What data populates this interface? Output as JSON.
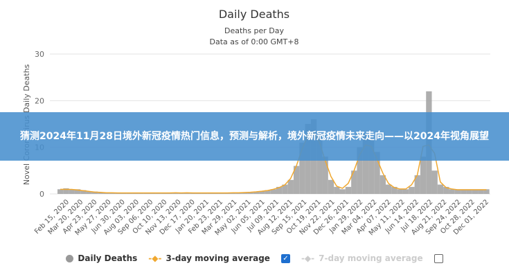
{
  "chart_data": {
    "type": "bar",
    "title": "Daily Deaths",
    "subtitle": [
      "Deaths per Day",
      "Data as of 0:00 GMT+8"
    ],
    "ylabel": "Novel Coronavirus Daily Deaths",
    "ylim": [
      0,
      30
    ],
    "yticks": [
      "0",
      "10",
      "20",
      "30"
    ],
    "grid": true,
    "legend_position": "bottom",
    "xticks": [
      "Feb 15, 2020",
      "Mar 20, 2020",
      "Apr 23, 2020",
      "May 27, 2020",
      "Jun 30, 2020",
      "Aug 03, 2020",
      "Sep 06, 2020",
      "Oct 10, 2020",
      "Nov 13, 2020",
      "Dec 17, 2020",
      "Jan 20, 2021",
      "Feb 23, 2021",
      "Mar 29, 2021",
      "May 02, 2021",
      "Jun 05, 2021",
      "Jul 09, 2021",
      "Aug 12, 2021",
      "Sep 15, 2021",
      "Oct 19, 2021",
      "Nov 22, 2021",
      "Dec 26, 2021",
      "Jan 29, 2022",
      "Mar 04, 2022",
      "Apr 07, 2022",
      "May 11, 2022",
      "Jun 14, 2022",
      "Jul 18, 2022",
      "Aug 21, 2022",
      "Sep 24, 2022",
      "Oct 28, 2022",
      "Dec 01, 2022"
    ],
    "x": [
      "2020-02-15",
      "2020-02-29",
      "2020-03-14",
      "2020-03-28",
      "2020-04-11",
      "2020-04-25",
      "2020-05-09",
      "2020-05-23",
      "2020-06-06",
      "2020-06-20",
      "2020-07-04",
      "2020-07-18",
      "2020-08-01",
      "2020-08-15",
      "2020-08-29",
      "2020-09-12",
      "2020-09-26",
      "2020-10-10",
      "2020-10-24",
      "2020-11-07",
      "2020-11-21",
      "2020-12-05",
      "2020-12-19",
      "2021-01-02",
      "2021-01-16",
      "2021-01-30",
      "2021-02-13",
      "2021-02-27",
      "2021-03-13",
      "2021-03-27",
      "2021-04-10",
      "2021-04-24",
      "2021-05-08",
      "2021-05-22",
      "2021-06-05",
      "2021-06-19",
      "2021-07-03",
      "2021-07-17",
      "2021-07-31",
      "2021-08-14",
      "2021-08-28",
      "2021-09-11",
      "2021-09-25",
      "2021-10-09",
      "2021-10-23",
      "2021-11-06",
      "2021-11-20",
      "2021-12-04",
      "2021-12-18",
      "2022-01-01",
      "2022-01-15",
      "2022-01-29",
      "2022-02-12",
      "2022-02-26",
      "2022-03-12",
      "2022-03-26",
      "2022-04-09",
      "2022-04-23",
      "2022-05-07",
      "2022-05-21",
      "2022-06-04",
      "2022-06-18",
      "2022-07-02",
      "2022-07-16",
      "2022-07-30",
      "2022-08-13",
      "2022-08-27",
      "2022-09-10",
      "2022-09-24",
      "2022-10-08",
      "2022-10-22",
      "2022-11-05",
      "2022-11-19",
      "2022-12-03",
      "2022-12-17"
    ],
    "series": [
      {
        "name": "Daily Deaths",
        "color": "#9e9e9e",
        "values": [
          1,
          1.2,
          1,
          1,
          0.8,
          0.5,
          0.5,
          0.3,
          0.3,
          0.2,
          0.3,
          0.2,
          0.2,
          0.3,
          0.2,
          0.2,
          0.3,
          0.2,
          0.2,
          0.3,
          0.2,
          0.3,
          0.2,
          0.3,
          0.2,
          0.2,
          0.3,
          0.2,
          0.2,
          0.3,
          0.2,
          0.3,
          0.3,
          0.4,
          0.5,
          0.6,
          0.8,
          1,
          1.5,
          2,
          3,
          6,
          11,
          15,
          16,
          13,
          8,
          3,
          1.5,
          1,
          1.5,
          5,
          10,
          13,
          12,
          9,
          4,
          2,
          1.5,
          1,
          1,
          1.5,
          4,
          8,
          22,
          5,
          2,
          1.5,
          1,
          1,
          1,
          1,
          1,
          1,
          1
        ]
      },
      {
        "name": "3-day moving average",
        "color": "#f0a830"
      },
      {
        "name": "7-day moving average",
        "color": "#cccccc"
      }
    ]
  },
  "legend": {
    "daily": "Daily Deaths",
    "avg3": "3-day moving average",
    "avg7": "7-day moving average",
    "avg3_checked": true,
    "avg7_checked": false
  },
  "banner": "猜测2024年11月28日境外新冠疫情热门信息，预测与解析，境外新冠疫情未来走向——以2024年视角展望"
}
